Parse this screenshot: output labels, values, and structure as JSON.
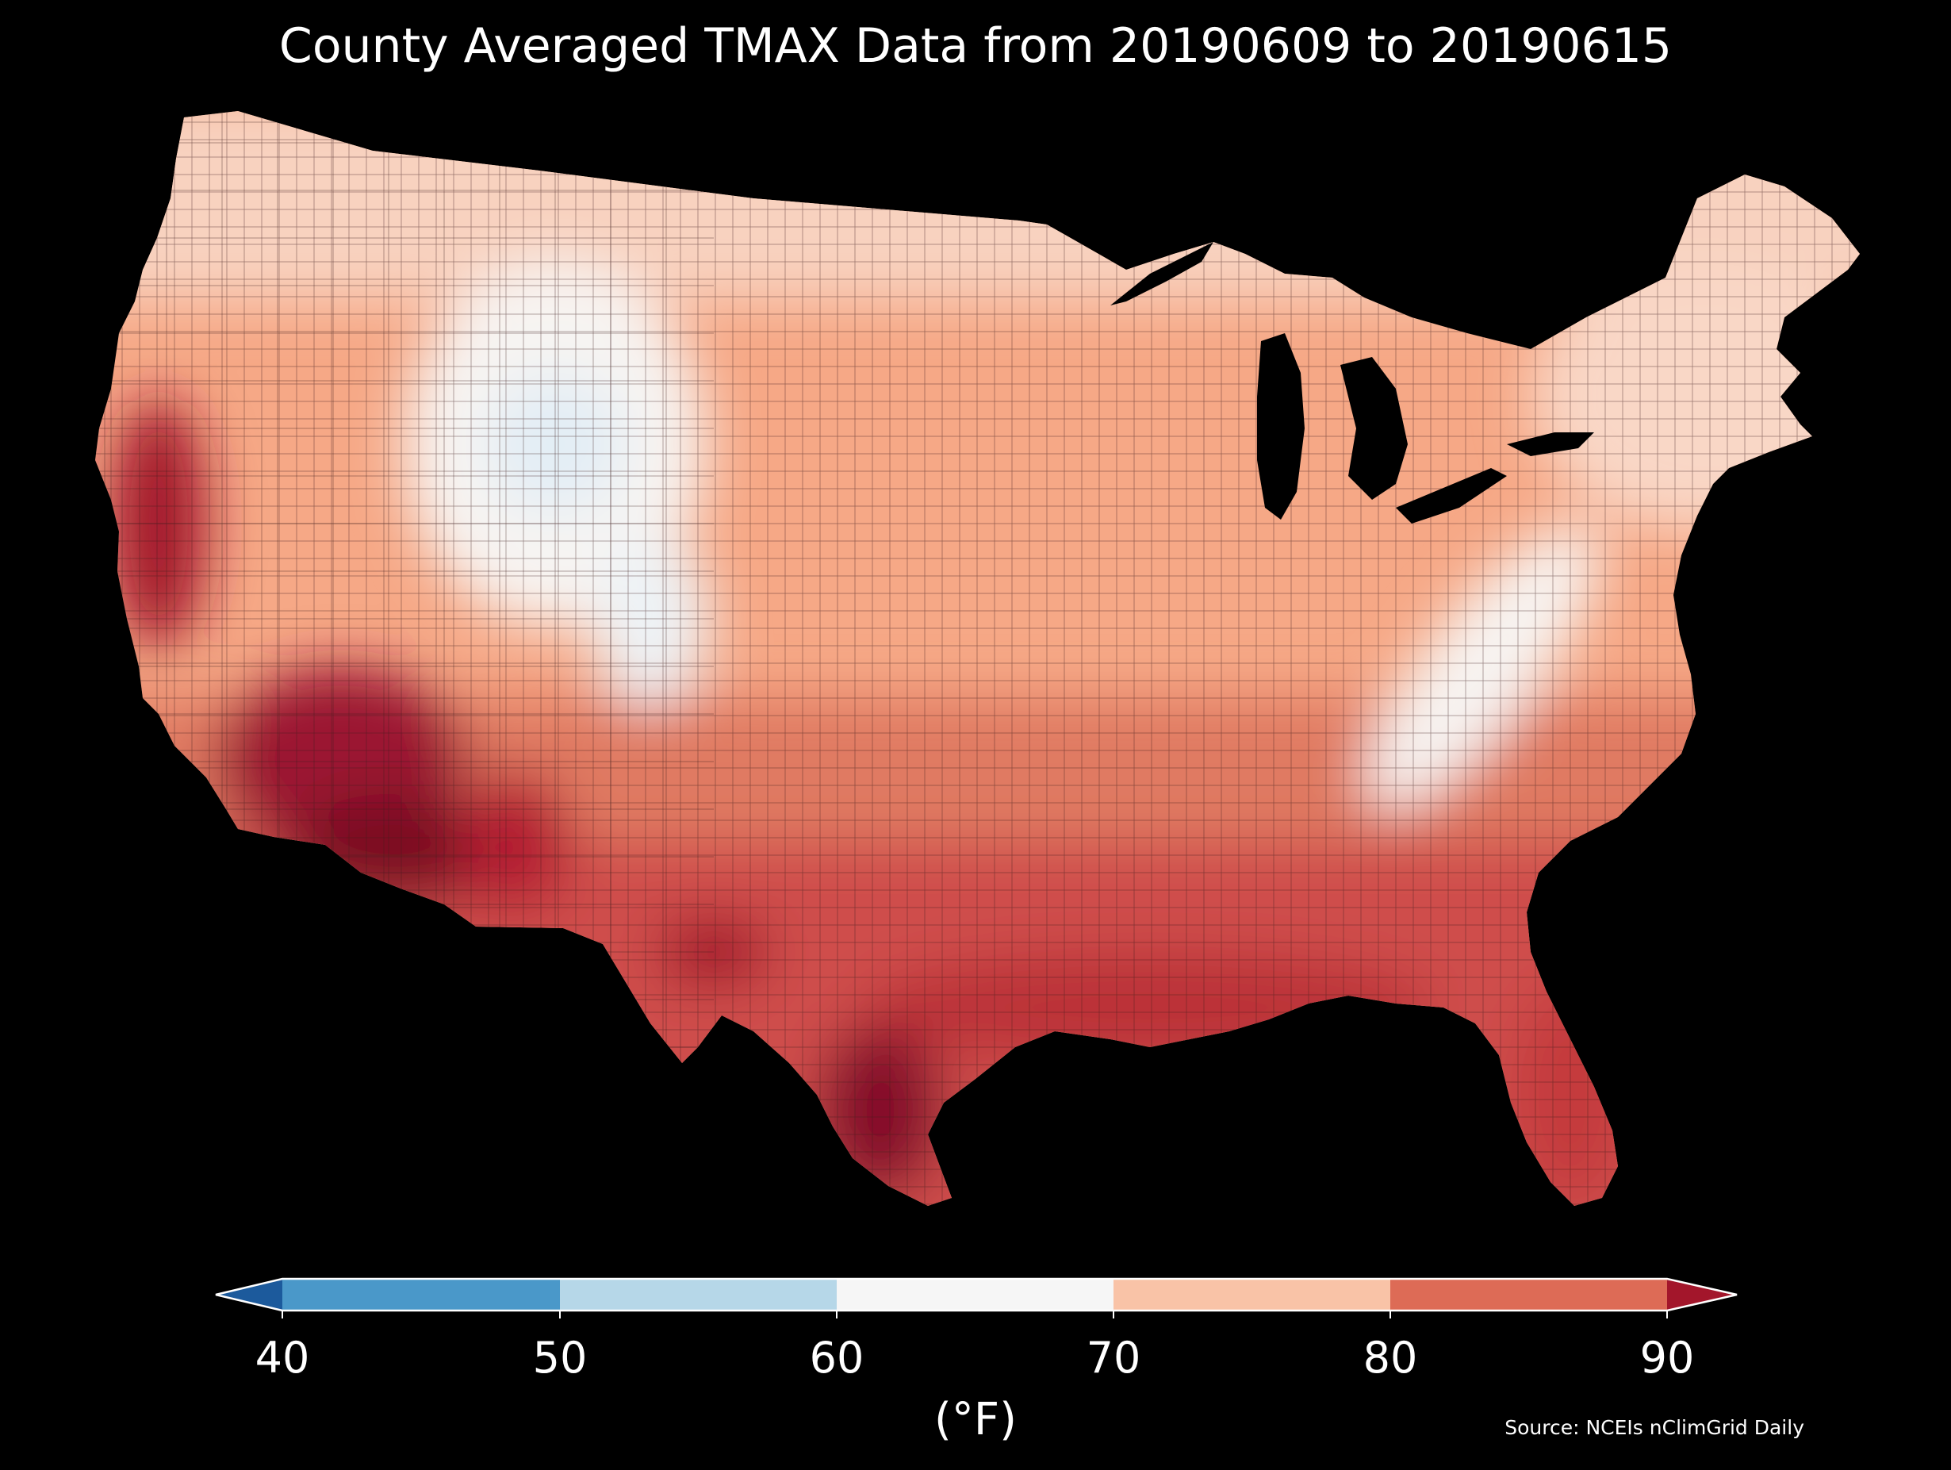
{
  "title": "County Averaged TMAX Data from 20190609 to 20190615",
  "colorbar": {
    "unit_label": "(°F)",
    "ticks": [
      "40",
      "50",
      "60",
      "70",
      "80",
      "90"
    ],
    "bins": [
      {
        "min": null,
        "max": 40,
        "color": "#1c5a9c"
      },
      {
        "min": 40,
        "max": 50,
        "color": "#4a98c9"
      },
      {
        "min": 50,
        "max": 60,
        "color": "#b6d7e8"
      },
      {
        "min": 60,
        "max": 70,
        "color": "#f6f6f6"
      },
      {
        "min": 70,
        "max": 80,
        "color": "#f9c3a7"
      },
      {
        "min": 80,
        "max": 90,
        "color": "#dd6b56"
      },
      {
        "min": 90,
        "max": null,
        "color": "#a3162b"
      }
    ]
  },
  "source": "Source: NCEIs nClimGrid Daily",
  "map_colors": {
    "background": "#000000",
    "coolest": "#e3eef5",
    "mild": "#f7f4f2",
    "warm": "#f7c7ad",
    "hot": "#e0775f",
    "hotter": "#c0393b",
    "hottest": "#7c0a24"
  }
}
